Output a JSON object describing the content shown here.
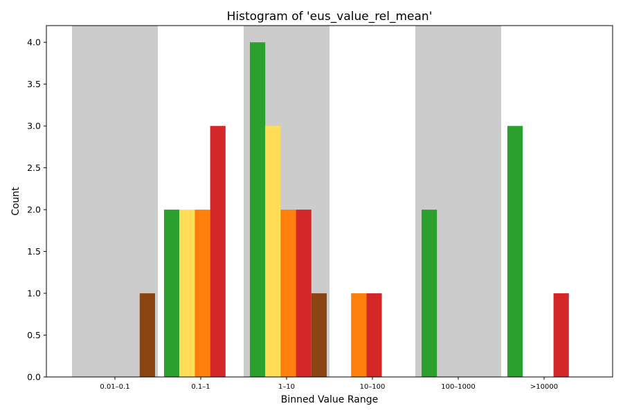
{
  "chart_data": {
    "type": "bar",
    "title": "Histogram of 'eus_value_rel_mean'",
    "xlabel": "Binned Value Range",
    "ylabel": "Count",
    "ylim": [
      0,
      4.2
    ],
    "yticks": [
      "0.0",
      "0.5",
      "1.0",
      "1.5",
      "2.0",
      "2.5",
      "3.0",
      "3.5",
      "4.0"
    ],
    "categories": [
      "0.01–0.1",
      "0.1–1",
      "1–10",
      "10–100",
      "100–1000",
      ">10000"
    ],
    "shaded_bins": [
      0,
      2,
      4
    ],
    "shade_color": "#cccccc",
    "grid": false,
    "series": [
      {
        "color": "#2ca02c",
        "values": [
          0,
          2,
          4,
          0,
          2,
          3
        ]
      },
      {
        "color": "#ffdd57",
        "values": [
          0,
          2,
          3,
          0,
          0,
          0
        ]
      },
      {
        "color": "#ff7f0e",
        "values": [
          0,
          2,
          2,
          1,
          0,
          0
        ]
      },
      {
        "color": "#d62728",
        "values": [
          0,
          3,
          2,
          1,
          0,
          1
        ]
      },
      {
        "color": "#8b4513",
        "values": [
          1,
          0,
          1,
          0,
          0,
          0
        ]
      }
    ]
  }
}
